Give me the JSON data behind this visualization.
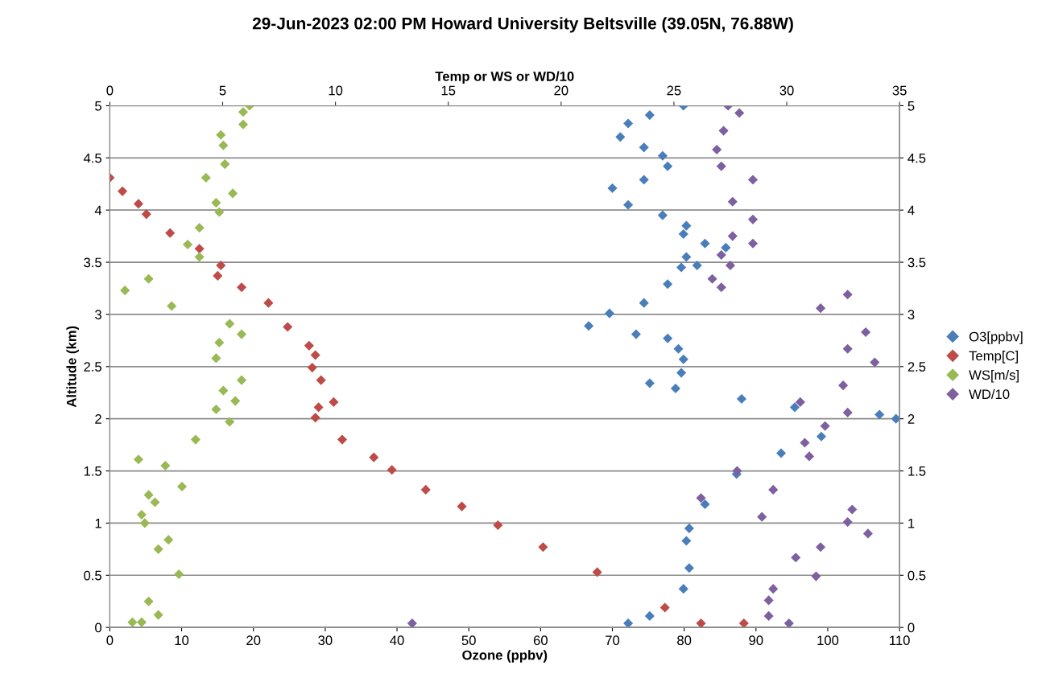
{
  "chart_data": {
    "type": "scatter",
    "title": "29-Jun-2023 02:00 PM Howard University Beltsville (39.05N, 76.88W)",
    "xlabel": "Ozone (ppbv)",
    "x2label": "Temp or WS or WD/10",
    "ylabel": "Altitude (km)",
    "xlim": [
      0,
      110
    ],
    "xticks": [
      0,
      10,
      20,
      30,
      40,
      50,
      60,
      70,
      80,
      90,
      100,
      110
    ],
    "x2lim": [
      0,
      35
    ],
    "x2ticks": [
      0,
      5,
      10,
      15,
      20,
      25,
      30,
      35
    ],
    "ylim": [
      0,
      5
    ],
    "yticks": [
      0,
      0.5,
      1,
      1.5,
      2,
      2.5,
      3,
      3.5,
      4,
      4.5,
      5
    ],
    "y2lim": [
      0,
      5
    ],
    "y2ticks": [
      0,
      0.5,
      1,
      1.5,
      2,
      2.5,
      3,
      3.5,
      4,
      4.5,
      5
    ],
    "grid": "y",
    "legend": "right",
    "marker": "diamond",
    "series": [
      {
        "name": "O3[ppbv]",
        "color": "#4a7ebb",
        "x": [
          72.2,
          75.2,
          79.9,
          80.7,
          80.3,
          80.7,
          82.9,
          87.3,
          93.5,
          99.1,
          109.5,
          107.2,
          95.4,
          88.0,
          78.8,
          75.2,
          79.6,
          79.9,
          79.2,
          77.7,
          73.3,
          66.7,
          69.6,
          74.4,
          77.7,
          79.6,
          81.8,
          80.3,
          85.8,
          82.9,
          79.9,
          80.3,
          77.0,
          72.2,
          70.0,
          74.4,
          77.7,
          77.0,
          74.4,
          71.1,
          72.2,
          75.2,
          79.9
        ],
        "values": [
          0.04,
          0.11,
          0.37,
          0.57,
          0.83,
          0.95,
          1.18,
          1.47,
          1.67,
          1.83,
          2.0,
          2.04,
          2.11,
          2.19,
          2.29,
          2.34,
          2.44,
          2.57,
          2.67,
          2.77,
          2.81,
          2.89,
          3.01,
          3.11,
          3.29,
          3.45,
          3.47,
          3.55,
          3.64,
          3.68,
          3.77,
          3.85,
          3.95,
          4.05,
          4.21,
          4.29,
          4.42,
          4.52,
          4.6,
          4.7,
          4.83,
          4.91,
          5.0
        ]
      },
      {
        "name": "Temp[C]",
        "color": "#be4b48",
        "axis": "x2",
        "x": [
          28.1,
          26.2,
          24.6,
          21.6,
          19.2,
          17.2,
          15.6,
          14.0,
          12.5,
          11.7,
          10.3,
          9.11,
          9.25,
          9.92,
          9.36,
          8.97,
          9.11,
          8.83,
          7.88,
          7.03,
          5.84,
          4.78,
          4.92,
          3.97,
          2.67,
          1.62,
          1.27,
          0.56,
          0.0
        ],
        "values": [
          0.04,
          0.04,
          0.19,
          0.53,
          0.77,
          0.98,
          1.16,
          1.32,
          1.51,
          1.63,
          1.8,
          2.01,
          2.11,
          2.16,
          2.37,
          2.49,
          2.61,
          2.7,
          2.88,
          3.11,
          3.26,
          3.37,
          3.47,
          3.63,
          3.78,
          3.96,
          4.06,
          4.18,
          4.31
        ]
      },
      {
        "name": "WS[m/s]",
        "color": "#98b954",
        "axis": "x2",
        "x": [
          1.0,
          1.41,
          2.15,
          1.72,
          3.06,
          2.15,
          2.6,
          1.55,
          1.41,
          2.0,
          1.72,
          3.2,
          2.46,
          1.27,
          3.8,
          5.31,
          4.71,
          5.56,
          5.03,
          5.84,
          4.71,
          4.85,
          5.84,
          5.31,
          2.74,
          0.67,
          1.72,
          3.97,
          3.45,
          3.97,
          4.85,
          4.71,
          5.45,
          4.26,
          5.1,
          5.03,
          4.92,
          5.91,
          5.91,
          6.19
        ],
        "values": [
          0.05,
          0.05,
          0.12,
          0.25,
          0.51,
          0.75,
          0.84,
          1.0,
          1.08,
          1.2,
          1.27,
          1.35,
          1.55,
          1.61,
          1.8,
          1.97,
          2.09,
          2.17,
          2.27,
          2.37,
          2.58,
          2.73,
          2.81,
          2.91,
          3.08,
          3.23,
          3.34,
          3.55,
          3.67,
          3.83,
          3.98,
          4.07,
          4.16,
          4.31,
          4.44,
          4.62,
          4.72,
          4.82,
          4.94,
          5.0
        ]
      },
      {
        "name": "WD/10",
        "color": "#7d60a0",
        "axis": "x2",
        "x": [
          13.4,
          30.1,
          29.2,
          29.2,
          29.4,
          31.3,
          30.4,
          31.5,
          33.6,
          32.7,
          28.9,
          32.9,
          26.2,
          29.4,
          27.8,
          31.0,
          30.8,
          31.7,
          32.7,
          30.6,
          32.5,
          33.9,
          32.7,
          33.5,
          31.5,
          32.7,
          27.1,
          26.7,
          27.5,
          27.1,
          28.5,
          27.6,
          28.5,
          27.6,
          28.5,
          27.1,
          26.9,
          27.2,
          27.9,
          27.4
        ],
        "values": [
          0.04,
          0.04,
          0.11,
          0.26,
          0.37,
          0.49,
          0.67,
          0.77,
          0.9,
          1.01,
          1.06,
          1.13,
          1.24,
          1.32,
          1.5,
          1.64,
          1.77,
          1.93,
          2.06,
          2.16,
          2.32,
          2.54,
          2.67,
          2.83,
          3.06,
          3.19,
          3.26,
          3.34,
          3.47,
          3.57,
          3.68,
          3.75,
          3.91,
          4.08,
          4.29,
          4.42,
          4.58,
          4.76,
          4.93,
          5.0
        ]
      }
    ]
  }
}
